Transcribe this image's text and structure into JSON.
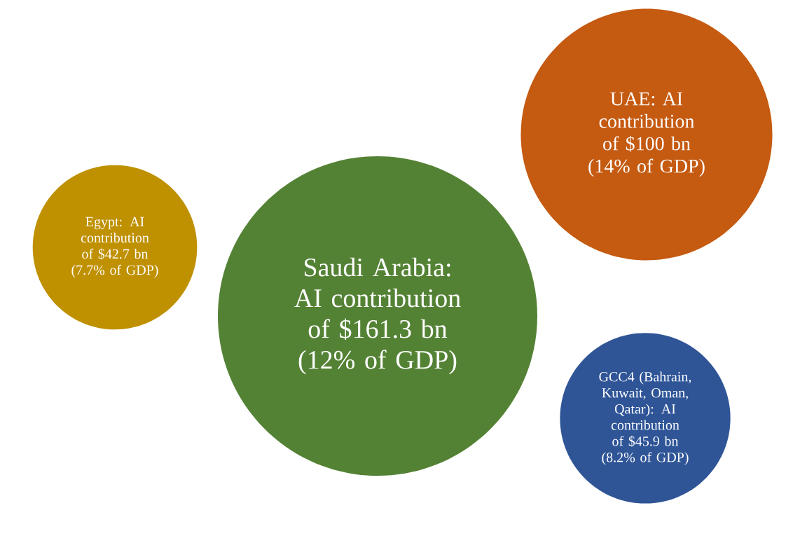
{
  "chart_data": {
    "type": "other",
    "categories": [
      "Egypt: AI contribution of",
      "Saudi Arabia: AI contribution of",
      "UAE: AI contribution of",
      "GCC4 (Bahrain, Kuwait, Oman, Qatar): AI contribution of"
    ],
    "values": [
      42.7,
      161.3,
      100,
      45.9
    ],
    "value_labels": [
      "$42.7 bn",
      "$161.3 bn",
      "$100 bn",
      "$45.9 bn"
    ],
    "annotations": [
      "(7.7% of GDP)",
      "(12% of GDP)",
      "(14% of GDP)",
      "(8.2% of GDP)"
    ],
    "colors": [
      "#bf9000",
      "#548235",
      "#c55a11",
      "#2f5597"
    ]
  }
}
